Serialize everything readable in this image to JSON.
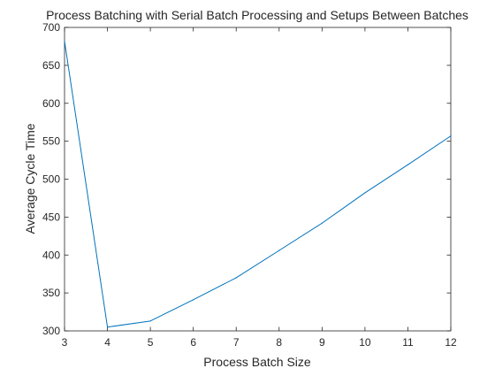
{
  "chart_data": {
    "type": "line",
    "title": "Process Batching with Serial Batch Processing and Setups Between Batches",
    "xlabel": "Process Batch Size",
    "ylabel": "Average Cycle Time",
    "xlim": [
      3,
      12
    ],
    "ylim": [
      300,
      700
    ],
    "xticks": [
      3,
      4,
      5,
      6,
      7,
      8,
      9,
      10,
      11,
      12
    ],
    "yticks": [
      300,
      350,
      400,
      450,
      500,
      550,
      600,
      650,
      700
    ],
    "grid": false,
    "legend": "none",
    "series": [
      {
        "color": "#0072bd",
        "x": [
          3,
          4,
          5,
          6,
          7,
          8,
          9,
          10,
          11,
          12
        ],
        "y": [
          682,
          305,
          313,
          341,
          370,
          406,
          442,
          482,
          519,
          557
        ]
      }
    ]
  }
}
